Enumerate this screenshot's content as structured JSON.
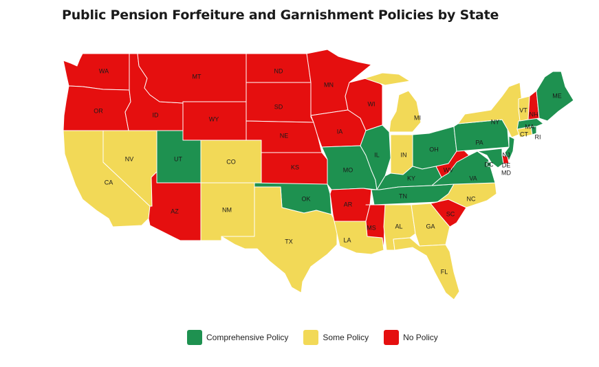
{
  "title": "Public Pension Forfeiture and Garnishment Policies by State",
  "colors": {
    "comprehensive": "#1e9150",
    "some": "#f2d957",
    "none": "#e50f0f"
  },
  "legend": [
    {
      "key": "comprehensive",
      "label": "Comprehensive Policy"
    },
    {
      "key": "some",
      "label": "Some Policy"
    },
    {
      "key": "none",
      "label": "No Policy"
    }
  ],
  "states": [
    {
      "code": "WA",
      "label": "WA",
      "policy": "none"
    },
    {
      "code": "OR",
      "label": "OR",
      "policy": "none"
    },
    {
      "code": "CA",
      "label": "CA",
      "policy": "some"
    },
    {
      "code": "NV",
      "label": "NV",
      "policy": "some"
    },
    {
      "code": "ID",
      "label": "ID",
      "policy": "none"
    },
    {
      "code": "MT",
      "label": "MT",
      "policy": "none"
    },
    {
      "code": "WY",
      "label": "WY",
      "policy": "none"
    },
    {
      "code": "UT",
      "label": "UT",
      "policy": "comprehensive"
    },
    {
      "code": "CO",
      "label": "CO",
      "policy": "some"
    },
    {
      "code": "AZ",
      "label": "AZ",
      "policy": "none"
    },
    {
      "code": "NM",
      "label": "NM",
      "policy": "some"
    },
    {
      "code": "ND",
      "label": "ND",
      "policy": "none"
    },
    {
      "code": "SD",
      "label": "SD",
      "policy": "none"
    },
    {
      "code": "NE",
      "label": "NE",
      "policy": "none"
    },
    {
      "code": "KS",
      "label": "KS",
      "policy": "none"
    },
    {
      "code": "OK",
      "label": "OK",
      "policy": "comprehensive"
    },
    {
      "code": "TX",
      "label": "TX",
      "policy": "some"
    },
    {
      "code": "MN",
      "label": "MN",
      "policy": "none"
    },
    {
      "code": "IA",
      "label": "IA",
      "policy": "none"
    },
    {
      "code": "MO",
      "label": "MO",
      "policy": "comprehensive"
    },
    {
      "code": "AR",
      "label": "AR",
      "policy": "none"
    },
    {
      "code": "LA",
      "label": "LA",
      "policy": "some"
    },
    {
      "code": "WI",
      "label": "WI",
      "policy": "none"
    },
    {
      "code": "IL",
      "label": "IL",
      "policy": "comprehensive"
    },
    {
      "code": "MI",
      "label": "MI",
      "policy": "some"
    },
    {
      "code": "IN",
      "label": "IN",
      "policy": "some"
    },
    {
      "code": "OH",
      "label": "OH",
      "policy": "comprehensive"
    },
    {
      "code": "KY",
      "label": "KY",
      "policy": "comprehensive"
    },
    {
      "code": "TN",
      "label": "TN",
      "policy": "comprehensive"
    },
    {
      "code": "MS",
      "label": "MS",
      "policy": "none"
    },
    {
      "code": "AL",
      "label": "AL",
      "policy": "some"
    },
    {
      "code": "GA",
      "label": "GA",
      "policy": "some"
    },
    {
      "code": "FL",
      "label": "FL",
      "policy": "some"
    },
    {
      "code": "SC",
      "label": "SC",
      "policy": "none"
    },
    {
      "code": "NC",
      "label": "NC",
      "policy": "some"
    },
    {
      "code": "VA",
      "label": "VA",
      "policy": "comprehensive"
    },
    {
      "code": "WV",
      "label": "WV",
      "policy": "none"
    },
    {
      "code": "PA",
      "label": "PA",
      "policy": "comprehensive"
    },
    {
      "code": "NY",
      "label": "NY",
      "policy": "some"
    },
    {
      "code": "NJ",
      "label": "NJ",
      "policy": "comprehensive"
    },
    {
      "code": "DE",
      "label": "DE",
      "policy": "none"
    },
    {
      "code": "MD",
      "label": "MD",
      "policy": "comprehensive"
    },
    {
      "code": "DC",
      "label": "DC",
      "policy": "comprehensive"
    },
    {
      "code": "CT",
      "label": "CT",
      "policy": "some"
    },
    {
      "code": "RI",
      "label": "RI",
      "policy": "comprehensive"
    },
    {
      "code": "MA",
      "label": "MA",
      "policy": "comprehensive"
    },
    {
      "code": "VT",
      "label": "VT",
      "policy": "some"
    },
    {
      "code": "NH",
      "label": "NH",
      "policy": "none"
    },
    {
      "code": "ME",
      "label": "ME",
      "policy": "comprehensive"
    }
  ]
}
